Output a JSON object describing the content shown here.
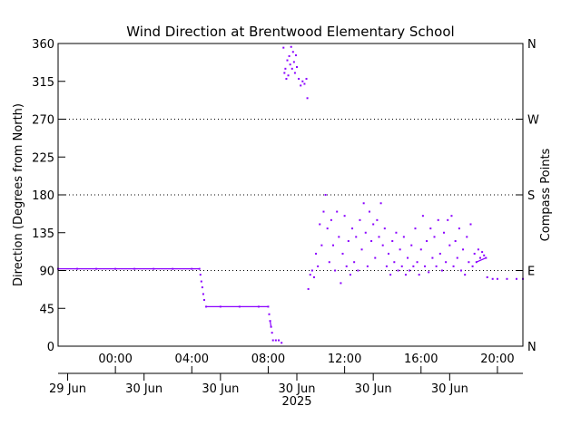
{
  "chart_data": {
    "type": "scatter",
    "title": "Wind Direction at Brentwood Elementary School",
    "ylabel": "Direction (Degrees from North)",
    "ylabel_right": "Compass Points",
    "ylim": [
      0,
      360
    ],
    "yticks": [
      0,
      45,
      90,
      135,
      180,
      225,
      270,
      315,
      360
    ],
    "compass_ticks": [
      {
        "value": 0,
        "label": "N"
      },
      {
        "value": 90,
        "label": "E"
      },
      {
        "value": 180,
        "label": "S"
      },
      {
        "value": 270,
        "label": "W"
      },
      {
        "value": 360,
        "label": "N"
      }
    ],
    "xlim": [
      "2025-06-29T21:00",
      "2025-06-30T21:20"
    ],
    "xticks": [
      {
        "value": "2025-06-30T00:00",
        "label": "00:00"
      },
      {
        "value": "2025-06-30T04:00",
        "label": "04:00"
      },
      {
        "value": "2025-06-30T08:00",
        "label": "08:00"
      },
      {
        "value": "2025-06-30T12:00",
        "label": "12:00"
      },
      {
        "value": "2025-06-30T16:00",
        "label": "16:00"
      },
      {
        "value": "2025-06-30T20:00",
        "label": "20:00"
      }
    ],
    "date_labels": [
      {
        "value": "2025-06-29T21:30",
        "label": "29 Jun"
      },
      {
        "value": "2025-06-30T01:30",
        "label": "30 Jun"
      },
      {
        "value": "2025-06-30T05:30",
        "label": "30 Jun"
      },
      {
        "value": "2025-06-30T09:30",
        "label": "30 Jun"
      },
      {
        "value": "2025-06-30T13:30",
        "label": "30 Jun"
      },
      {
        "value": "2025-06-30T17:30",
        "label": "30 Jun"
      }
    ],
    "year_label": {
      "value": "2025-06-30T09:30",
      "label": "2025"
    },
    "grid": {
      "y_dotted": [
        90,
        180,
        270
      ]
    },
    "series_color": "#8a00ff",
    "series": [
      {
        "values": [
          [
            "2025-06-29T21:00",
            92
          ],
          [
            "2025-06-29T22:00",
            92
          ],
          [
            "2025-06-29T23:00",
            92
          ],
          [
            "2025-06-30T00:00",
            92
          ],
          [
            "2025-06-30T01:00",
            92
          ],
          [
            "2025-06-30T02:00",
            92
          ],
          [
            "2025-06-30T03:00",
            92
          ],
          [
            "2025-06-30T04:00",
            92
          ],
          [
            "2025-06-30T04:24",
            92
          ],
          [
            "2025-06-30T04:27",
            85
          ],
          [
            "2025-06-30T04:30",
            77
          ],
          [
            "2025-06-30T04:33",
            70
          ],
          [
            "2025-06-30T04:36",
            62
          ],
          [
            "2025-06-30T04:39",
            55
          ],
          [
            "2025-06-30T04:45",
            47
          ],
          [
            "2025-06-30T05:30",
            47
          ],
          [
            "2025-06-30T06:30",
            47
          ],
          [
            "2025-06-30T07:30",
            47
          ],
          [
            "2025-06-30T08:00",
            47
          ],
          [
            "2025-06-30T08:03",
            38
          ],
          [
            "2025-06-30T08:06",
            30
          ],
          [
            "2025-06-30T08:09",
            23
          ],
          [
            "2025-06-30T08:12",
            16
          ],
          [
            "2025-06-30T08:15",
            7
          ],
          [
            "2025-06-30T08:24",
            7
          ],
          [
            "2025-06-30T08:33",
            7
          ],
          [
            "2025-06-30T08:42",
            4
          ],
          [
            "2025-06-30T08:48",
            355
          ],
          [
            "2025-06-30T08:51",
            325
          ],
          [
            "2025-06-30T08:54",
            330
          ],
          [
            "2025-06-30T08:57",
            318
          ],
          [
            "2025-06-30T09:00",
            340
          ],
          [
            "2025-06-30T09:03",
            322
          ],
          [
            "2025-06-30T09:06",
            345
          ],
          [
            "2025-06-30T09:09",
            335
          ],
          [
            "2025-06-30T09:12",
            356
          ],
          [
            "2025-06-30T09:15",
            330
          ],
          [
            "2025-06-30T09:18",
            350
          ],
          [
            "2025-06-30T09:21",
            338
          ],
          [
            "2025-06-30T09:24",
            325
          ],
          [
            "2025-06-30T09:27",
            346
          ],
          [
            "2025-06-30T09:30",
            332
          ],
          [
            "2025-06-30T09:36",
            318
          ],
          [
            "2025-06-30T09:42",
            310
          ],
          [
            "2025-06-30T09:48",
            315
          ],
          [
            "2025-06-30T09:54",
            312
          ],
          [
            "2025-06-30T10:00",
            318
          ],
          [
            "2025-06-30T10:03",
            295
          ],
          [
            "2025-06-30T10:06",
            68
          ],
          [
            "2025-06-30T10:12",
            85
          ],
          [
            "2025-06-30T10:18",
            90
          ],
          [
            "2025-06-30T10:24",
            82
          ],
          [
            "2025-06-30T10:30",
            110
          ],
          [
            "2025-06-30T10:36",
            95
          ],
          [
            "2025-06-30T10:42",
            145
          ],
          [
            "2025-06-30T10:48",
            120
          ],
          [
            "2025-06-30T10:54",
            160
          ],
          [
            "2025-06-30T11:00",
            180
          ],
          [
            "2025-06-30T11:06",
            140
          ],
          [
            "2025-06-30T11:12",
            100
          ],
          [
            "2025-06-30T11:18",
            150
          ],
          [
            "2025-06-30T11:24",
            120
          ],
          [
            "2025-06-30T11:30",
            90
          ],
          [
            "2025-06-30T11:36",
            160
          ],
          [
            "2025-06-30T11:42",
            130
          ],
          [
            "2025-06-30T11:48",
            75
          ],
          [
            "2025-06-30T11:54",
            110
          ],
          [
            "2025-06-30T12:00",
            155
          ],
          [
            "2025-06-30T12:06",
            95
          ],
          [
            "2025-06-30T12:12",
            125
          ],
          [
            "2025-06-30T12:18",
            85
          ],
          [
            "2025-06-30T12:24",
            140
          ],
          [
            "2025-06-30T12:30",
            100
          ],
          [
            "2025-06-30T12:36",
            130
          ],
          [
            "2025-06-30T12:42",
            90
          ],
          [
            "2025-06-30T12:48",
            150
          ],
          [
            "2025-06-30T12:54",
            115
          ],
          [
            "2025-06-30T13:00",
            170
          ],
          [
            "2025-06-30T13:06",
            135
          ],
          [
            "2025-06-30T13:12",
            95
          ],
          [
            "2025-06-30T13:18",
            160
          ],
          [
            "2025-06-30T13:24",
            125
          ],
          [
            "2025-06-30T13:30",
            145
          ],
          [
            "2025-06-30T13:36",
            105
          ],
          [
            "2025-06-30T13:42",
            150
          ],
          [
            "2025-06-30T13:48",
            130
          ],
          [
            "2025-06-30T13:54",
            170
          ],
          [
            "2025-06-30T14:00",
            120
          ],
          [
            "2025-06-30T14:06",
            140
          ],
          [
            "2025-06-30T14:12",
            95
          ],
          [
            "2025-06-30T14:18",
            110
          ],
          [
            "2025-06-30T14:24",
            85
          ],
          [
            "2025-06-30T14:30",
            125
          ],
          [
            "2025-06-30T14:36",
            100
          ],
          [
            "2025-06-30T14:42",
            135
          ],
          [
            "2025-06-30T14:48",
            90
          ],
          [
            "2025-06-30T14:54",
            115
          ],
          [
            "2025-06-30T15:00",
            95
          ],
          [
            "2025-06-30T15:06",
            130
          ],
          [
            "2025-06-30T15:12",
            85
          ],
          [
            "2025-06-30T15:18",
            105
          ],
          [
            "2025-06-30T15:24",
            90
          ],
          [
            "2025-06-30T15:30",
            120
          ],
          [
            "2025-06-30T15:36",
            95
          ],
          [
            "2025-06-30T15:42",
            140
          ],
          [
            "2025-06-30T15:48",
            100
          ],
          [
            "2025-06-30T15:54",
            85
          ],
          [
            "2025-06-30T16:00",
            115
          ],
          [
            "2025-06-30T16:06",
            155
          ],
          [
            "2025-06-30T16:12",
            95
          ],
          [
            "2025-06-30T16:18",
            125
          ],
          [
            "2025-06-30T16:24",
            88
          ],
          [
            "2025-06-30T16:30",
            140
          ],
          [
            "2025-06-30T16:36",
            105
          ],
          [
            "2025-06-30T16:42",
            130
          ],
          [
            "2025-06-30T16:48",
            95
          ],
          [
            "2025-06-30T16:54",
            150
          ],
          [
            "2025-06-30T17:00",
            110
          ],
          [
            "2025-06-30T17:06",
            90
          ],
          [
            "2025-06-30T17:12",
            135
          ],
          [
            "2025-06-30T17:18",
            100
          ],
          [
            "2025-06-30T17:24",
            150
          ],
          [
            "2025-06-30T17:30",
            120
          ],
          [
            "2025-06-30T17:36",
            155
          ],
          [
            "2025-06-30T17:42",
            95
          ],
          [
            "2025-06-30T17:48",
            125
          ],
          [
            "2025-06-30T17:54",
            105
          ],
          [
            "2025-06-30T18:00",
            140
          ],
          [
            "2025-06-30T18:06",
            90
          ],
          [
            "2025-06-30T18:12",
            115
          ],
          [
            "2025-06-30T18:18",
            85
          ],
          [
            "2025-06-30T18:24",
            130
          ],
          [
            "2025-06-30T18:30",
            100
          ],
          [
            "2025-06-30T18:36",
            145
          ],
          [
            "2025-06-30T18:42",
            95
          ],
          [
            "2025-06-30T18:48",
            110
          ],
          [
            "2025-06-30T18:54",
            100
          ],
          [
            "2025-06-30T19:00",
            115
          ],
          [
            "2025-06-30T19:06",
            105
          ],
          [
            "2025-06-30T19:12",
            112
          ],
          [
            "2025-06-30T19:18",
            108
          ],
          [
            "2025-06-30T19:24",
            105
          ],
          [
            "2025-06-30T19:28",
            82
          ],
          [
            "2025-06-30T19:45",
            80
          ],
          [
            "2025-06-30T20:00",
            80
          ],
          [
            "2025-06-30T20:30",
            80
          ],
          [
            "2025-06-30T21:00",
            80
          ],
          [
            "2025-06-30T21:20",
            80
          ]
        ]
      }
    ]
  }
}
